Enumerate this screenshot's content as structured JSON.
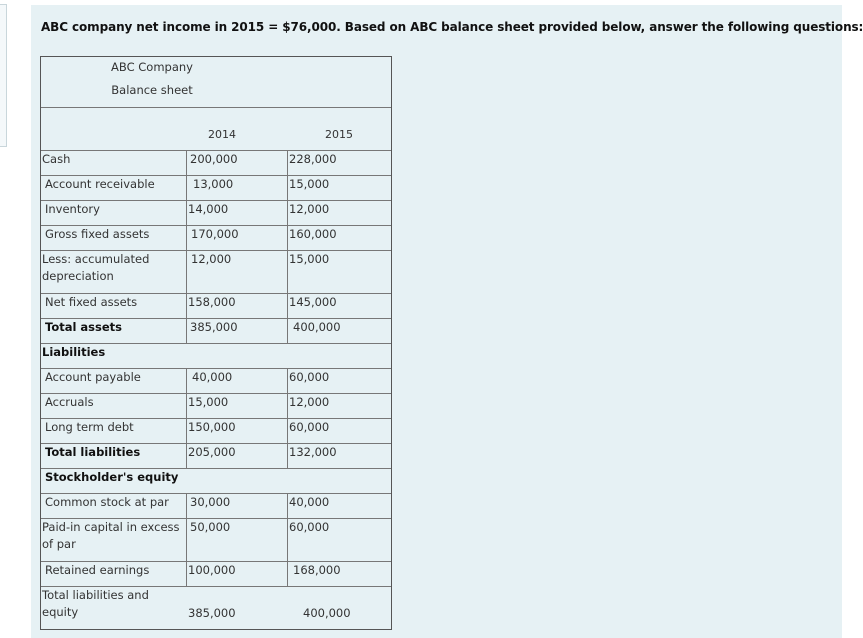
{
  "question": "ABC company net income in 2015 = $76,000. Based on ABC balance sheet provided below, answer the following questions:",
  "sheet": {
    "company": "ABC Company",
    "title": "Balance sheet",
    "year1": "2014",
    "year2": "2015",
    "rows": [
      {
        "label": "Cash",
        "v1": "200,000",
        "v2": "228,000"
      },
      {
        "label": "Account receivable",
        "v1": "13,000",
        "v2": "15,000"
      },
      {
        "label": "Inventory",
        "v1": "14,000",
        "v2": "12,000"
      },
      {
        "label": "Gross fixed assets",
        "v1": "170,000",
        "v2": "160,000"
      },
      {
        "label": "Less: accumulated depreciation",
        "v1": "12,000",
        "v2": "15,000"
      },
      {
        "label": "Net fixed assets",
        "v1": "158,000",
        "v2": "145,000"
      },
      {
        "label": "Total assets",
        "v1": "385,000",
        "v2": "400,000"
      },
      {
        "label": "Liabilities",
        "v1": "",
        "v2": ""
      },
      {
        "label": "Account payable",
        "v1": "40,000",
        "v2": "60,000"
      },
      {
        "label": "Accruals",
        "v1": "15,000",
        "v2": "12,000"
      },
      {
        "label": "Long term debt",
        "v1": "150,000",
        "v2": "60,000"
      },
      {
        "label": "Total liabilities",
        "v1": "205,000",
        "v2": "132,000"
      },
      {
        "label": "Stockholder's equity",
        "v1": "",
        "v2": ""
      },
      {
        "label": "Common stock at par",
        "v1": "30,000",
        "v2": "40,000"
      },
      {
        "label": "Paid-in capital in excess of par",
        "v1": "50,000",
        "v2": "60,000"
      },
      {
        "label": "Retained earnings",
        "v1": "100,000",
        "v2": "168,000"
      },
      {
        "label": "Total liabilities and equity",
        "v1": "385,000",
        "v2": "400,000"
      }
    ]
  }
}
